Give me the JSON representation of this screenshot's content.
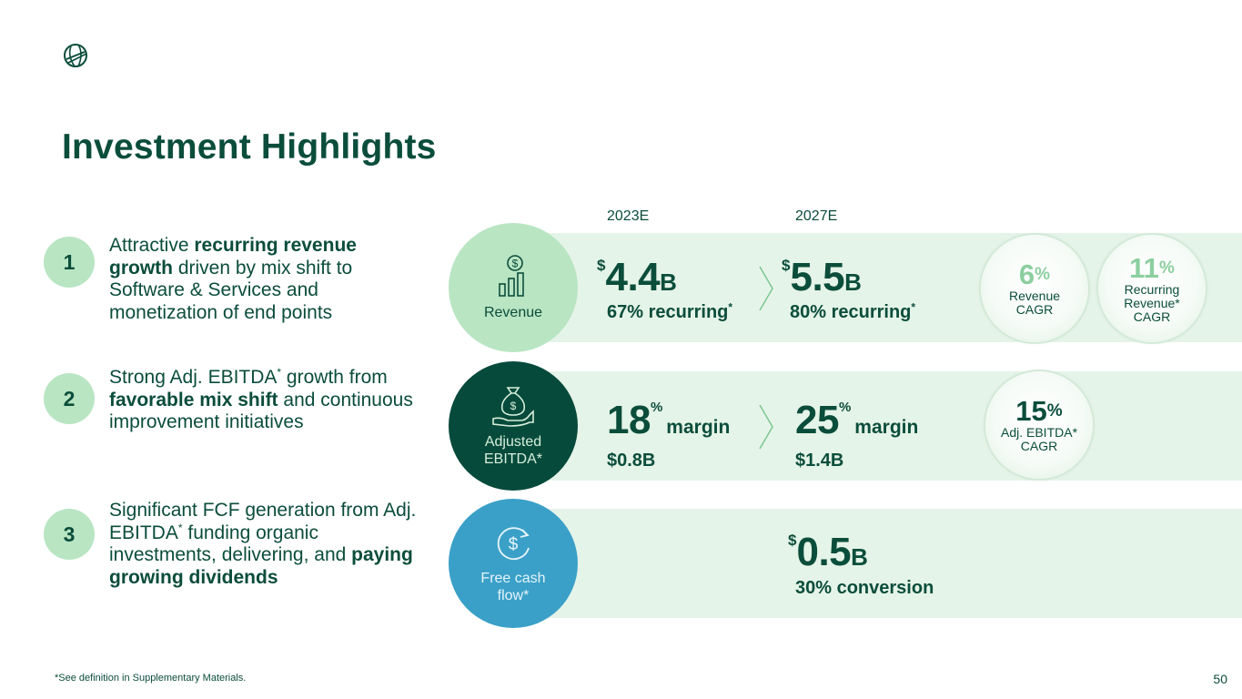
{
  "page": {
    "title": "Investment Highlights",
    "footnote": "*See definition in Supplementary Materials.",
    "page_number": "50",
    "logo_icon": "globe-logo-icon"
  },
  "years": {
    "left": "2023E",
    "right": "2027E"
  },
  "highlights": [
    {
      "number": "1",
      "parts": [
        {
          "text": "Attractive ",
          "bold": false
        },
        {
          "text": "recurring revenue growth",
          "bold": true
        },
        {
          "text": " driven by mix shift to Software & Services and monetization of end points",
          "bold": false
        }
      ]
    },
    {
      "number": "2",
      "parts": [
        {
          "text": "Strong Adj. EBITDA",
          "bold": false
        },
        {
          "text": "*",
          "sup": true
        },
        {
          "text": " growth from ",
          "bold": false
        },
        {
          "text": "favorable mix shift",
          "bold": true
        },
        {
          "text": " and continuous improvement initiatives",
          "bold": false
        }
      ]
    },
    {
      "number": "3",
      "parts": [
        {
          "text": "Significant FCF generation from Adj. EBITDA",
          "bold": false
        },
        {
          "text": "*",
          "sup": true
        },
        {
          "text": " funding organic investments, delivering, and ",
          "bold": false
        },
        {
          "text": "paying growing dividends",
          "bold": true
        }
      ]
    }
  ],
  "revenue": {
    "label": "Revenue",
    "icon": "revenue-chart-icon",
    "v2023": {
      "dollar": "$",
      "value": "4.4",
      "unit": "B",
      "sub": "67% recurring",
      "sub_mark": "*"
    },
    "v2027": {
      "dollar": "$",
      "value": "5.5",
      "unit": "B",
      "sub": "80% recurring",
      "sub_mark": "*"
    },
    "cagr": [
      {
        "value": "6",
        "pct": "%",
        "label_lines": [
          "Revenue",
          "CAGR"
        ]
      },
      {
        "value": "11",
        "pct": "%",
        "label_lines": [
          "Recurring",
          "Revenue*",
          "CAGR"
        ]
      }
    ]
  },
  "ebitda": {
    "label_lines": [
      "Adjusted",
      "EBITDA*"
    ],
    "icon": "money-bag-hand-icon",
    "v2023": {
      "value": "18",
      "pct": "%",
      "word": "margin",
      "sub": "$0.8B"
    },
    "v2027": {
      "value": "25",
      "pct": "%",
      "word": "margin",
      "sub": "$1.4B"
    },
    "cagr": {
      "value": "15",
      "pct": "%",
      "label_lines": [
        "Adj. EBITDA*",
        "CAGR"
      ]
    }
  },
  "fcf": {
    "label_lines": [
      "Free cash",
      "flow*"
    ],
    "icon": "dollar-cycle-icon",
    "v2027": {
      "dollar": "$",
      "value": "0.5",
      "unit": "B",
      "sub": "30% conversion"
    }
  },
  "colors": {
    "dark_green": "#0b4d3b",
    "light_green": "#b9e5c3",
    "band_bg": "#e5f4e8",
    "blue": "#3aa0c8"
  }
}
